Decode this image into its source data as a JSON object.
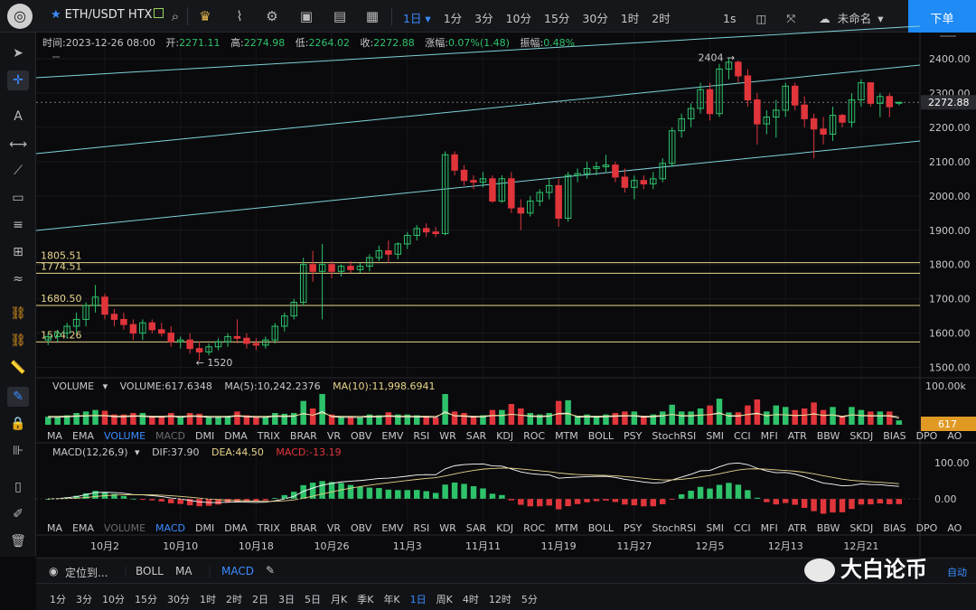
{
  "topbar": {
    "symbol": "ETH/USDT HTX",
    "intervals": [
      "1日",
      "1分",
      "3分",
      "10分",
      "15分",
      "30分",
      "1时",
      "2时"
    ],
    "active_interval": "1日",
    "tool_1s": "1s",
    "unnamed": "未命名",
    "order_button": "下单",
    "icons": [
      "crown-icon",
      "indicator-icon",
      "settings-icon",
      "template-icon",
      "save-icon",
      "layout-icon",
      "camera-icon",
      "fullscreen-icon",
      "cloud-icon",
      "wifi-icon"
    ]
  },
  "ohlc": {
    "time_label": "时间:",
    "time": "2023-12-26 08:00",
    "open_label": "开:",
    "open": "2271.11",
    "high_label": "高:",
    "high": "2274.98",
    "low_label": "低:",
    "low": "2264.02",
    "close_label": "收:",
    "close": "2272.88",
    "chg_label": "涨幅:",
    "chg": "0.07%(1.48)",
    "amp_label": "振幅:",
    "amp": "0.48%"
  },
  "levels": [
    {
      "label": "1805.51",
      "value": 1805.51
    },
    {
      "label": "1774.51",
      "value": 1774.51
    },
    {
      "label": "1680.50",
      "value": 1680.5
    },
    {
      "label": "1574.26",
      "value": 1574.26
    }
  ],
  "annotations": {
    "high_marker": "2404",
    "low_marker": "1520"
  },
  "price_axis": {
    "ticks": [
      "2400.00",
      "2300.00",
      "2200.00",
      "2100.00",
      "2000.00",
      "1900.00",
      "1800.00",
      "1700.00",
      "1600.00",
      "1500.00"
    ],
    "current": "2272.88"
  },
  "volume": {
    "title": "VOLUME",
    "value_label": "VOLUME:617.6348",
    "ma5": "MA(5):10,242.2376",
    "ma10": "MA(10):11,998.6941",
    "axis": "100.00k",
    "current": "617"
  },
  "macd": {
    "title": "MACD(12,26,9)",
    "dif": "DIF:37.90",
    "dea": "DEA:44.50",
    "macd": "MACD:-13.19",
    "axis": [
      "100.00",
      "0.00"
    ]
  },
  "indicator_tabs": [
    "MA",
    "EMA",
    "VOLUME",
    "MACD",
    "DMI",
    "DMA",
    "TRIX",
    "BRAR",
    "VR",
    "OBV",
    "EMV",
    "RSI",
    "WR",
    "SAR",
    "KDJ",
    "ROC",
    "MTM",
    "BOLL",
    "PSY",
    "StochRSI",
    "SMI",
    "CCI",
    "MFI",
    "ATR",
    "BBW",
    "SKDJ",
    "BIAS",
    "DPO",
    "AO"
  ],
  "date_axis": [
    "10月2",
    "10月10",
    "10月18",
    "10月26",
    "11月3",
    "11月11",
    "11月19",
    "11月27",
    "12月5",
    "12月13",
    "12月21"
  ],
  "bottom": {
    "locate": "定位到...",
    "boll": "BOLL",
    "ma": "MA",
    "macd": "MACD",
    "auto": "自动",
    "periods": [
      "1分",
      "3分",
      "10分",
      "15分",
      "30分",
      "1时",
      "2时",
      "2日",
      "3日",
      "5日",
      "月K",
      "季K",
      "年K",
      "1日",
      "周K",
      "4时",
      "12时",
      "5分"
    ],
    "active_period": "1日"
  },
  "watermark": "大白论币",
  "colors": {
    "up": "#2ec26a",
    "down": "#e0353b",
    "accent": "#1f8bf5",
    "channel": "#7fd3d8",
    "level": "#e8d58a",
    "current_tag": "#e09a24"
  },
  "chart_data": {
    "type": "candlestick",
    "start_date": "2023-09-26",
    "ohlc": [
      [
        1580,
        1600,
        1565,
        1590
      ],
      [
        1590,
        1610,
        1575,
        1600
      ],
      [
        1600,
        1630,
        1585,
        1620
      ],
      [
        1620,
        1660,
        1600,
        1640
      ],
      [
        1640,
        1690,
        1620,
        1680
      ],
      [
        1680,
        1740,
        1660,
        1705
      ],
      [
        1705,
        1715,
        1640,
        1655
      ],
      [
        1655,
        1670,
        1620,
        1640
      ],
      [
        1640,
        1660,
        1610,
        1625
      ],
      [
        1625,
        1640,
        1580,
        1600
      ],
      [
        1600,
        1640,
        1580,
        1630
      ],
      [
        1630,
        1640,
        1600,
        1610
      ],
      [
        1610,
        1630,
        1590,
        1600
      ],
      [
        1600,
        1620,
        1560,
        1575
      ],
      [
        1575,
        1590,
        1555,
        1580
      ],
      [
        1580,
        1600,
        1540,
        1555
      ],
      [
        1555,
        1575,
        1520,
        1545
      ],
      [
        1545,
        1570,
        1535,
        1560
      ],
      [
        1560,
        1585,
        1550,
        1575
      ],
      [
        1575,
        1600,
        1560,
        1590
      ],
      [
        1590,
        1640,
        1570,
        1585
      ],
      [
        1585,
        1600,
        1555,
        1570
      ],
      [
        1570,
        1585,
        1550,
        1565
      ],
      [
        1565,
        1590,
        1555,
        1580
      ],
      [
        1580,
        1630,
        1570,
        1620
      ],
      [
        1620,
        1660,
        1605,
        1650
      ],
      [
        1650,
        1700,
        1640,
        1690
      ],
      [
        1690,
        1820,
        1680,
        1800
      ],
      [
        1800,
        1840,
        1750,
        1780
      ],
      [
        1780,
        1860,
        1640,
        1800
      ],
      [
        1800,
        1810,
        1760,
        1780
      ],
      [
        1780,
        1800,
        1765,
        1795
      ],
      [
        1795,
        1810,
        1775,
        1785
      ],
      [
        1785,
        1805,
        1775,
        1795
      ],
      [
        1795,
        1830,
        1780,
        1820
      ],
      [
        1820,
        1855,
        1810,
        1840
      ],
      [
        1840,
        1870,
        1805,
        1830
      ],
      [
        1830,
        1865,
        1815,
        1860
      ],
      [
        1860,
        1895,
        1845,
        1885
      ],
      [
        1885,
        1915,
        1870,
        1905
      ],
      [
        1905,
        1920,
        1880,
        1895
      ],
      [
        1895,
        1910,
        1880,
        1890
      ],
      [
        1890,
        2130,
        1885,
        2120
      ],
      [
        2120,
        2130,
        2060,
        2075
      ],
      [
        2075,
        2090,
        2030,
        2045
      ],
      [
        2045,
        2060,
        2020,
        2040
      ],
      [
        2040,
        2070,
        2025,
        2050
      ],
      [
        2050,
        2060,
        1980,
        1985
      ],
      [
        1985,
        2060,
        1980,
        2050
      ],
      [
        2050,
        2070,
        1950,
        1965
      ],
      [
        1965,
        1990,
        1900,
        1950
      ],
      [
        1950,
        2000,
        1940,
        1985
      ],
      [
        1985,
        2020,
        1970,
        2010
      ],
      [
        2010,
        2050,
        1990,
        2030
      ],
      [
        2030,
        2050,
        1910,
        1935
      ],
      [
        1935,
        2070,
        1925,
        2060
      ],
      [
        2060,
        2080,
        2040,
        2065
      ],
      [
        2065,
        2100,
        2050,
        2080
      ],
      [
        2080,
        2100,
        2060,
        2085
      ],
      [
        2085,
        2120,
        2070,
        2090
      ],
      [
        2090,
        2100,
        2040,
        2055
      ],
      [
        2055,
        2080,
        2010,
        2025
      ],
      [
        2025,
        2060,
        1990,
        2045
      ],
      [
        2045,
        2060,
        2020,
        2035
      ],
      [
        2035,
        2070,
        2020,
        2050
      ],
      [
        2050,
        2110,
        2040,
        2095
      ],
      [
        2095,
        2200,
        2085,
        2190
      ],
      [
        2190,
        2240,
        2170,
        2225
      ],
      [
        2225,
        2270,
        2200,
        2255
      ],
      [
        2255,
        2330,
        2240,
        2310
      ],
      [
        2310,
        2330,
        2220,
        2240
      ],
      [
        2240,
        2385,
        2230,
        2370
      ],
      [
        2370,
        2404,
        2340,
        2390
      ],
      [
        2390,
        2395,
        2330,
        2350
      ],
      [
        2350,
        2370,
        2260,
        2280
      ],
      [
        2280,
        2300,
        2150,
        2210
      ],
      [
        2210,
        2250,
        2180,
        2230
      ],
      [
        2230,
        2280,
        2170,
        2250
      ],
      [
        2250,
        2330,
        2230,
        2320
      ],
      [
        2320,
        2330,
        2250,
        2265
      ],
      [
        2265,
        2290,
        2200,
        2225
      ],
      [
        2225,
        2240,
        2110,
        2195
      ],
      [
        2195,
        2230,
        2150,
        2180
      ],
      [
        2180,
        2260,
        2160,
        2235
      ],
      [
        2235,
        2240,
        2200,
        2215
      ],
      [
        2215,
        2300,
        2200,
        2280
      ],
      [
        2280,
        2340,
        2260,
        2330
      ],
      [
        2330,
        2330,
        2260,
        2270
      ],
      [
        2270,
        2300,
        2230,
        2290
      ],
      [
        2290,
        2300,
        2230,
        2260
      ],
      [
        2271.11,
        2274.98,
        2264.02,
        2272.88
      ]
    ]
  }
}
